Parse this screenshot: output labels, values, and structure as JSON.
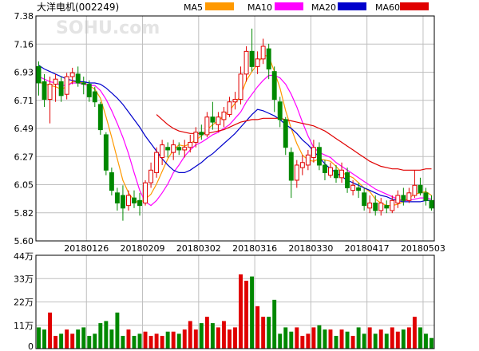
{
  "header": {
    "title": "大洋电机(002249)",
    "watermark": "SOHU.com",
    "legend": [
      {
        "label": "MA5",
        "color": "#ff9900"
      },
      {
        "label": "MA10",
        "color": "#ff00ff"
      },
      {
        "label": "MA20",
        "color": "#0000cc"
      },
      {
        "label": "MA60",
        "color": "#e00000"
      }
    ]
  },
  "colors": {
    "up": "#e00000",
    "down": "#008800",
    "grid": "#bfbfbf",
    "frame": "#000000"
  },
  "chart_data": {
    "type": "candlestick",
    "price_axis": {
      "ylim": [
        5.6,
        7.38
      ],
      "ticks": [
        "7.38",
        "7.16",
        "6.93",
        "6.71",
        "6.49",
        "6.27",
        "6.05",
        "5.82",
        "5.60"
      ]
    },
    "volume_axis": {
      "ylim": [
        0,
        44
      ],
      "unit": "万",
      "ticks": [
        "44万",
        "33万",
        "22万",
        "11万",
        "0"
      ]
    },
    "x_labels": [
      {
        "label": "20180126",
        "index": 9
      },
      {
        "label": "20180209",
        "index": 19
      },
      {
        "label": "20180302",
        "index": 29
      },
      {
        "label": "20180316",
        "index": 39
      },
      {
        "label": "20180330",
        "index": 49
      },
      {
        "label": "20180417",
        "index": 59
      },
      {
        "label": "20180503",
        "index": 69
      }
    ],
    "candles": [
      [
        6.98,
        6.85,
        7.02,
        6.75
      ],
      [
        6.86,
        6.72,
        6.92,
        6.66
      ],
      [
        6.72,
        6.84,
        6.9,
        6.53
      ],
      [
        6.84,
        6.88,
        6.92,
        6.7
      ],
      [
        6.86,
        6.75,
        6.9,
        6.7
      ],
      [
        6.76,
        6.9,
        6.93,
        6.72
      ],
      [
        6.9,
        6.93,
        6.97,
        6.84
      ],
      [
        6.92,
        6.85,
        6.98,
        6.82
      ],
      [
        6.85,
        6.84,
        6.9,
        6.76
      ],
      [
        6.84,
        6.74,
        6.87,
        6.7
      ],
      [
        6.78,
        6.7,
        6.82,
        6.66
      ],
      [
        6.68,
        6.48,
        6.7,
        6.44
      ],
      [
        6.44,
        6.16,
        6.46,
        6.12
      ],
      [
        6.14,
        6.0,
        6.18,
        5.96
      ],
      [
        5.98,
        5.9,
        6.02,
        5.84
      ],
      [
        5.96,
        5.86,
        6.04,
        5.76
      ],
      [
        5.88,
        5.96,
        6.0,
        5.84
      ],
      [
        5.94,
        5.9,
        6.0,
        5.86
      ],
      [
        5.92,
        5.88,
        5.98,
        5.8
      ],
      [
        5.9,
        6.06,
        6.08,
        5.88
      ],
      [
        6.06,
        6.16,
        6.22,
        6.02
      ],
      [
        6.14,
        6.3,
        6.34,
        6.1
      ],
      [
        6.26,
        6.36,
        6.4,
        6.2
      ],
      [
        6.34,
        6.32,
        6.38,
        6.26
      ],
      [
        6.3,
        6.36,
        6.4,
        6.24
      ],
      [
        6.34,
        6.32,
        6.38,
        6.28
      ],
      [
        6.32,
        6.34,
        6.4,
        6.26
      ],
      [
        6.34,
        6.38,
        6.44,
        6.3
      ],
      [
        6.38,
        6.46,
        6.5,
        6.34
      ],
      [
        6.46,
        6.44,
        6.52,
        6.4
      ],
      [
        6.44,
        6.58,
        6.62,
        6.42
      ],
      [
        6.58,
        6.54,
        6.7,
        6.48
      ],
      [
        6.52,
        6.58,
        6.62,
        6.46
      ],
      [
        6.56,
        6.62,
        6.66,
        6.5
      ],
      [
        6.6,
        6.7,
        6.74,
        6.58
      ],
      [
        6.7,
        6.72,
        6.78,
        6.64
      ],
      [
        6.72,
        6.92,
        6.98,
        6.68
      ],
      [
        6.92,
        7.1,
        7.14,
        6.86
      ],
      [
        7.1,
        6.98,
        7.28,
        6.94
      ],
      [
        6.98,
        7.04,
        7.1,
        6.92
      ],
      [
        7.04,
        7.14,
        7.2,
        7.0
      ],
      [
        7.12,
        6.96,
        7.16,
        6.88
      ],
      [
        6.94,
        6.72,
        6.98,
        6.62
      ],
      [
        6.7,
        6.56,
        6.74,
        6.5
      ],
      [
        6.56,
        6.34,
        6.58,
        6.28
      ],
      [
        6.3,
        6.08,
        6.34,
        5.94
      ],
      [
        6.08,
        6.2,
        6.24,
        6.02
      ],
      [
        6.18,
        6.22,
        6.28,
        6.12
      ],
      [
        6.2,
        6.28,
        6.32,
        6.16
      ],
      [
        6.26,
        6.34,
        6.4,
        6.22
      ],
      [
        6.34,
        6.2,
        6.38,
        6.16
      ],
      [
        6.2,
        6.14,
        6.24,
        6.08
      ],
      [
        6.12,
        6.18,
        6.22,
        6.1
      ],
      [
        6.16,
        6.1,
        6.2,
        6.06
      ],
      [
        6.1,
        6.16,
        6.22,
        6.06
      ],
      [
        6.14,
        6.02,
        6.18,
        5.98
      ],
      [
        6.0,
        6.04,
        6.08,
        5.96
      ],
      [
        6.02,
        6.0,
        6.06,
        5.94
      ],
      [
        5.98,
        5.88,
        6.02,
        5.84
      ],
      [
        5.86,
        5.9,
        5.96,
        5.82
      ],
      [
        5.9,
        5.84,
        5.96,
        5.8
      ],
      [
        5.84,
        5.9,
        5.94,
        5.8
      ],
      [
        5.88,
        5.86,
        5.92,
        5.82
      ],
      [
        5.84,
        5.92,
        5.96,
        5.82
      ],
      [
        5.9,
        5.96,
        6.0,
        5.86
      ],
      [
        5.96,
        5.92,
        6.02,
        5.88
      ],
      [
        5.92,
        5.98,
        6.02,
        5.9
      ],
      [
        5.96,
        6.04,
        6.16,
        5.94
      ],
      [
        6.04,
        5.98,
        6.1,
        5.96
      ],
      [
        5.98,
        5.92,
        6.02,
        5.88
      ],
      [
        5.92,
        5.86,
        5.96,
        5.84
      ]
    ],
    "volumes": [
      10,
      9,
      17,
      6,
      7,
      9,
      7,
      9,
      10,
      6,
      7,
      12,
      13,
      9,
      17,
      6,
      9,
      6,
      7,
      8,
      6,
      7,
      6,
      8,
      8,
      7,
      9,
      13,
      9,
      12,
      15,
      12,
      10,
      13,
      9,
      10,
      35,
      32,
      34,
      20,
      15,
      15,
      23,
      7,
      10,
      8,
      10,
      6,
      7,
      10,
      11,
      9,
      9,
      6,
      9,
      8,
      6,
      10,
      7,
      10,
      7,
      9,
      7,
      10,
      8,
      9,
      10,
      15,
      10,
      7,
      5
    ],
    "ma_series": [
      {
        "name": "MA5",
        "values": [
          6.86,
          6.84,
          6.83,
          6.82,
          6.8,
          6.82,
          6.86,
          6.86,
          6.85,
          6.83,
          6.8,
          6.73,
          6.58,
          6.42,
          6.25,
          6.08,
          5.98,
          5.92,
          5.9,
          5.93,
          5.97,
          6.05,
          6.15,
          6.25,
          6.32,
          6.36,
          6.35,
          6.37,
          6.4,
          6.43,
          6.48,
          6.52,
          6.55,
          6.59,
          6.63,
          6.69,
          6.75,
          6.87,
          6.94,
          7.0,
          7.07,
          7.06,
          6.94,
          6.81,
          6.63,
          6.49,
          6.37,
          6.28,
          6.24,
          6.23,
          6.25,
          6.24,
          6.23,
          6.19,
          6.14,
          6.12,
          6.1,
          6.06,
          6.02,
          5.99,
          5.93,
          5.9,
          5.88,
          5.88,
          5.89,
          5.91,
          5.94,
          5.97,
          5.98,
          5.99,
          5.96
        ]
      },
      {
        "name": "MA10",
        "values": [
          6.9,
          6.88,
          6.86,
          6.85,
          6.83,
          6.83,
          6.85,
          6.85,
          6.84,
          6.83,
          6.83,
          6.79,
          6.72,
          6.63,
          6.53,
          6.42,
          6.29,
          6.14,
          6.0,
          5.91,
          5.88,
          5.92,
          5.98,
          6.05,
          6.14,
          6.2,
          6.27,
          6.32,
          6.36,
          6.38,
          6.41,
          6.44,
          6.46,
          6.49,
          6.52,
          6.57,
          6.62,
          6.7,
          6.76,
          6.82,
          6.87,
          6.91,
          6.91,
          6.89,
          6.84,
          6.76,
          6.66,
          6.54,
          6.43,
          6.34,
          6.3,
          6.28,
          6.26,
          6.22,
          6.19,
          6.16,
          6.13,
          6.1,
          6.07,
          6.04,
          6.01,
          5.99,
          5.97,
          5.95,
          5.93,
          5.92,
          5.92,
          5.93,
          5.94,
          5.94,
          5.93
        ]
      },
      {
        "name": "MA20",
        "values": [
          6.99,
          6.96,
          6.94,
          6.92,
          6.9,
          6.88,
          6.87,
          6.86,
          6.86,
          6.85,
          6.85,
          6.84,
          6.81,
          6.77,
          6.73,
          6.68,
          6.62,
          6.56,
          6.5,
          6.43,
          6.37,
          6.31,
          6.25,
          6.2,
          6.16,
          6.14,
          6.14,
          6.16,
          6.19,
          6.22,
          6.26,
          6.29,
          6.33,
          6.37,
          6.41,
          6.45,
          6.5,
          6.55,
          6.6,
          6.64,
          6.63,
          6.61,
          6.59,
          6.56,
          6.52,
          6.49,
          6.45,
          6.4,
          6.36,
          6.31,
          6.26,
          6.21,
          6.17,
          6.14,
          6.11,
          6.08,
          6.06,
          6.04,
          6.02,
          6.0,
          5.98,
          5.96,
          5.95,
          5.93,
          5.92,
          5.91,
          5.91,
          5.91,
          5.91,
          5.92,
          5.92
        ]
      },
      {
        "name": "MA60",
        "values": [
          null,
          null,
          null,
          null,
          null,
          null,
          null,
          null,
          null,
          null,
          null,
          null,
          null,
          null,
          null,
          null,
          null,
          null,
          null,
          null,
          null,
          6.6,
          6.56,
          6.52,
          6.49,
          6.47,
          6.46,
          6.45,
          6.45,
          6.45,
          6.45,
          6.46,
          6.47,
          6.48,
          6.5,
          6.52,
          6.54,
          6.55,
          6.56,
          6.56,
          6.57,
          6.57,
          6.57,
          6.57,
          6.56,
          6.55,
          6.54,
          6.53,
          6.52,
          6.51,
          6.49,
          6.47,
          6.44,
          6.41,
          6.38,
          6.35,
          6.32,
          6.29,
          6.26,
          6.23,
          6.21,
          6.19,
          6.18,
          6.17,
          6.17,
          6.16,
          6.16,
          6.16,
          6.16,
          6.17,
          6.17
        ]
      }
    ]
  }
}
